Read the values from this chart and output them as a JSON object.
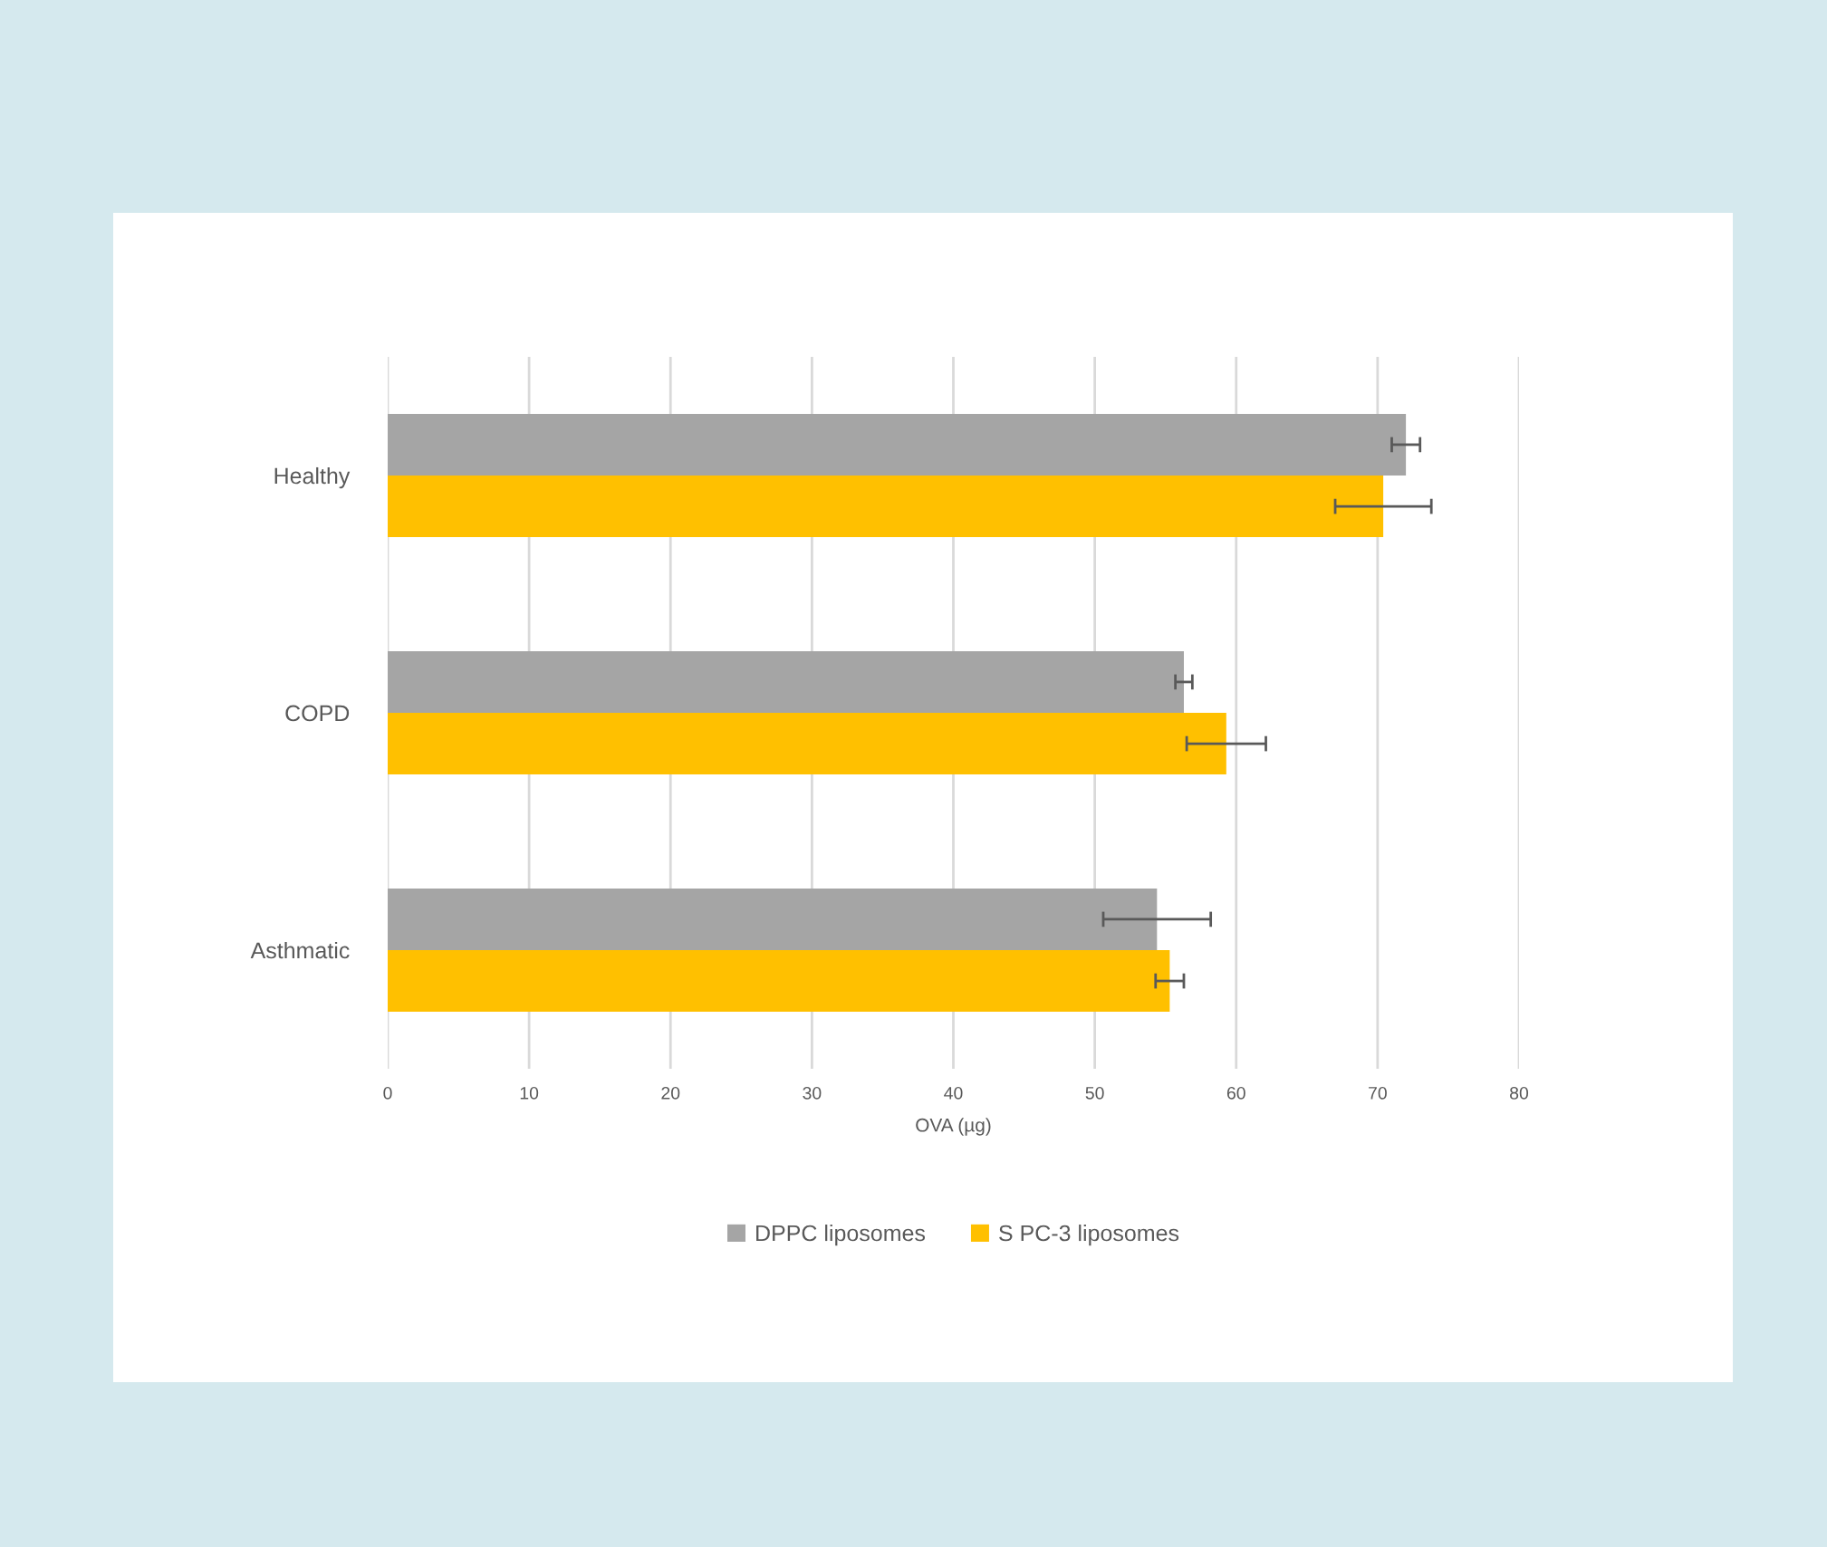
{
  "chart_data": {
    "type": "bar",
    "orientation": "horizontal",
    "xlabel": "OVA (µg)",
    "categories": [
      "Healthy",
      "COPD",
      "Asthmatic"
    ],
    "series": [
      {
        "name": "DPPC liposomes",
        "color": "#a5a5a5",
        "values": [
          72.0,
          56.3,
          54.4
        ],
        "errors": [
          1.0,
          0.6,
          3.8
        ]
      },
      {
        "name": "S PC-3 liposomes",
        "color": "#ffc000",
        "values": [
          70.4,
          59.3,
          55.3
        ],
        "errors": [
          3.4,
          2.8,
          1.0
        ]
      }
    ],
    "xlim": [
      0,
      80
    ],
    "xticks": [
      0,
      10,
      20,
      30,
      40,
      50,
      60,
      70,
      80
    ],
    "grid": "x",
    "legend": "bottom"
  }
}
